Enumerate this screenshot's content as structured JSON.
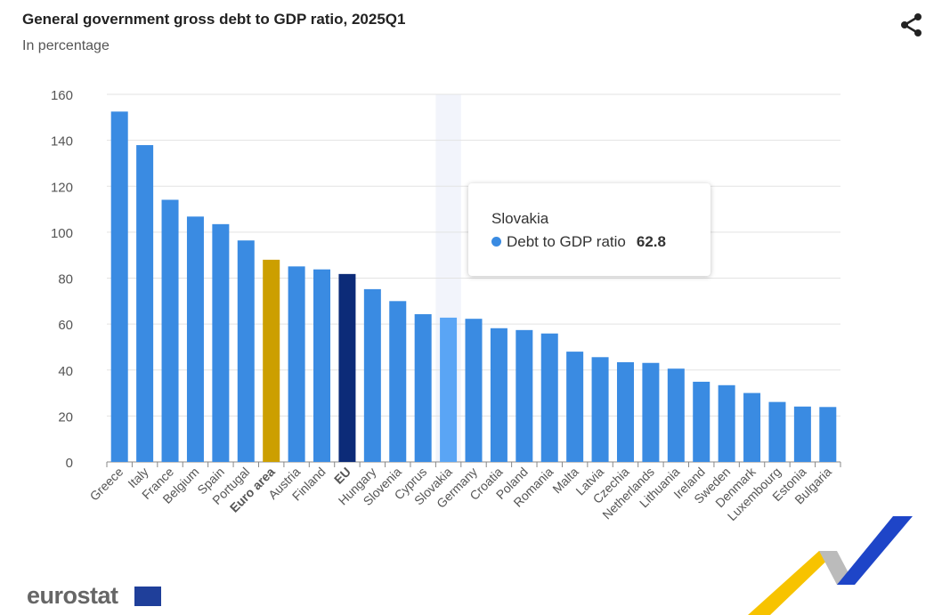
{
  "title": "General government gross debt to GDP ratio, 2025Q1",
  "subtitle": "In percentage",
  "share_icon": "share-icon",
  "logo": "eurostat",
  "tooltip": {
    "country": "Slovakia",
    "series": "Debt to GDP ratio",
    "value": "62.8"
  },
  "colors": {
    "bar": "#3a8be2",
    "euro_area": "#cc9f00",
    "eu": "#0c2b78",
    "hover": "#5aa5f5"
  },
  "chart_data": {
    "type": "bar",
    "title": "General government gross debt to GDP ratio, 2025Q1",
    "subtitle": "In percentage",
    "ylim": [
      0,
      160
    ],
    "yticks": [
      0,
      20,
      40,
      60,
      80,
      100,
      120,
      140,
      160
    ],
    "grid": true,
    "legend": "none",
    "categories": [
      "Greece",
      "Italy",
      "France",
      "Belgium",
      "Spain",
      "Portugal",
      "Euro area",
      "Austria",
      "Finland",
      "EU",
      "Hungary",
      "Slovenia",
      "Cyprus",
      "Slovakia",
      "Germany",
      "Croatia",
      "Poland",
      "Romania",
      "Malta",
      "Latvia",
      "Czechia",
      "Netherlands",
      "Lithuania",
      "Ireland",
      "Sweden",
      "Denmark",
      "Luxembourg",
      "Estonia",
      "Bulgaria"
    ],
    "series": [
      {
        "name": "Debt to GDP ratio",
        "values": [
          152.5,
          137.9,
          114.1,
          106.8,
          103.5,
          96.4,
          88.0,
          85.1,
          83.8,
          81.8,
          75.2,
          70.0,
          64.3,
          62.8,
          62.3,
          58.2,
          57.4,
          55.9,
          48.0,
          45.6,
          43.4,
          43.1,
          40.6,
          34.9,
          33.4,
          30.0,
          26.1,
          24.1,
          23.9
        ]
      }
    ],
    "highlighted": {
      "Euro area": "euro_area",
      "EU": "eu",
      "Slovakia": "hover"
    },
    "bold_labels": [
      "Euro area",
      "EU"
    ]
  }
}
